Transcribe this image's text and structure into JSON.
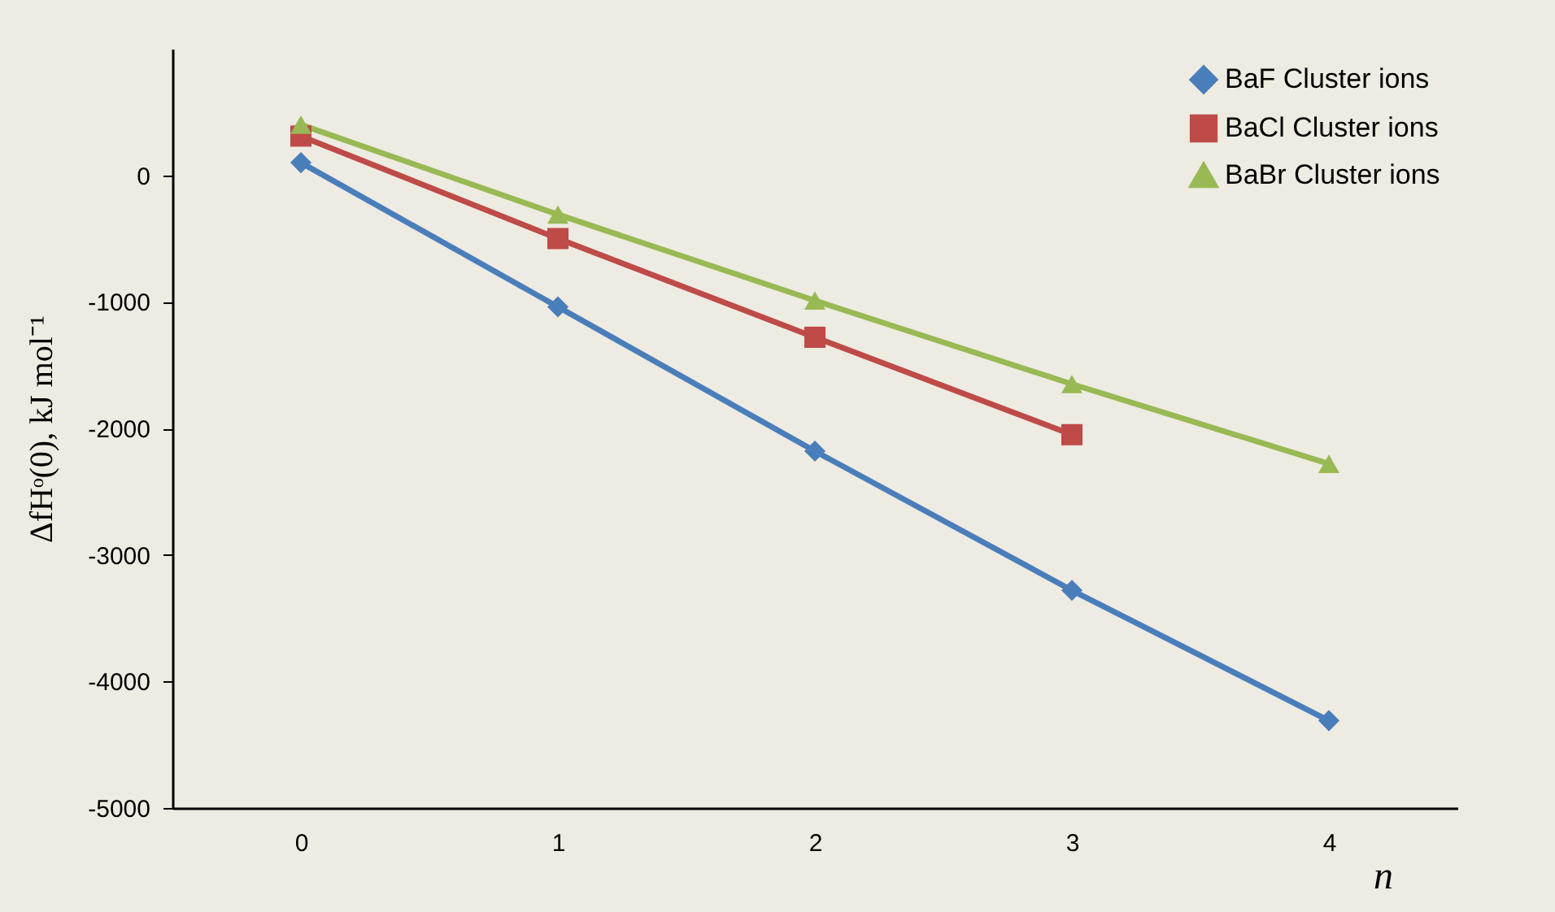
{
  "chart_data": {
    "type": "line",
    "xlabel": "n",
    "ylabel": "ΔfHᵒ(0), kJ mol⁻¹",
    "x": [
      0,
      1,
      2,
      3,
      4
    ],
    "xlim": [
      -0.5,
      4.5
    ],
    "xticks": [
      0,
      1,
      2,
      3,
      4
    ],
    "ylim": [
      -5000,
      1000
    ],
    "yticks": [
      -5000,
      -4000,
      -3000,
      -2000,
      -1000,
      0
    ],
    "series": [
      {
        "name": "BaF Cluster ions",
        "color": "#4a7ebb",
        "marker": "diamond",
        "values": [
          100,
          -1040,
          -2180,
          -3280,
          -4310
        ]
      },
      {
        "name": "BaCl Cluster ions",
        "color": "#be4b48",
        "marker": "square",
        "values": [
          310,
          -500,
          -1280,
          -2050,
          null
        ]
      },
      {
        "name": "BaBr Cluster ions",
        "color": "#98b954",
        "marker": "triangle",
        "values": [
          400,
          -310,
          -990,
          -1650,
          -2280
        ]
      }
    ],
    "grid": false,
    "legend": "top right",
    "line_style": "solid"
  }
}
